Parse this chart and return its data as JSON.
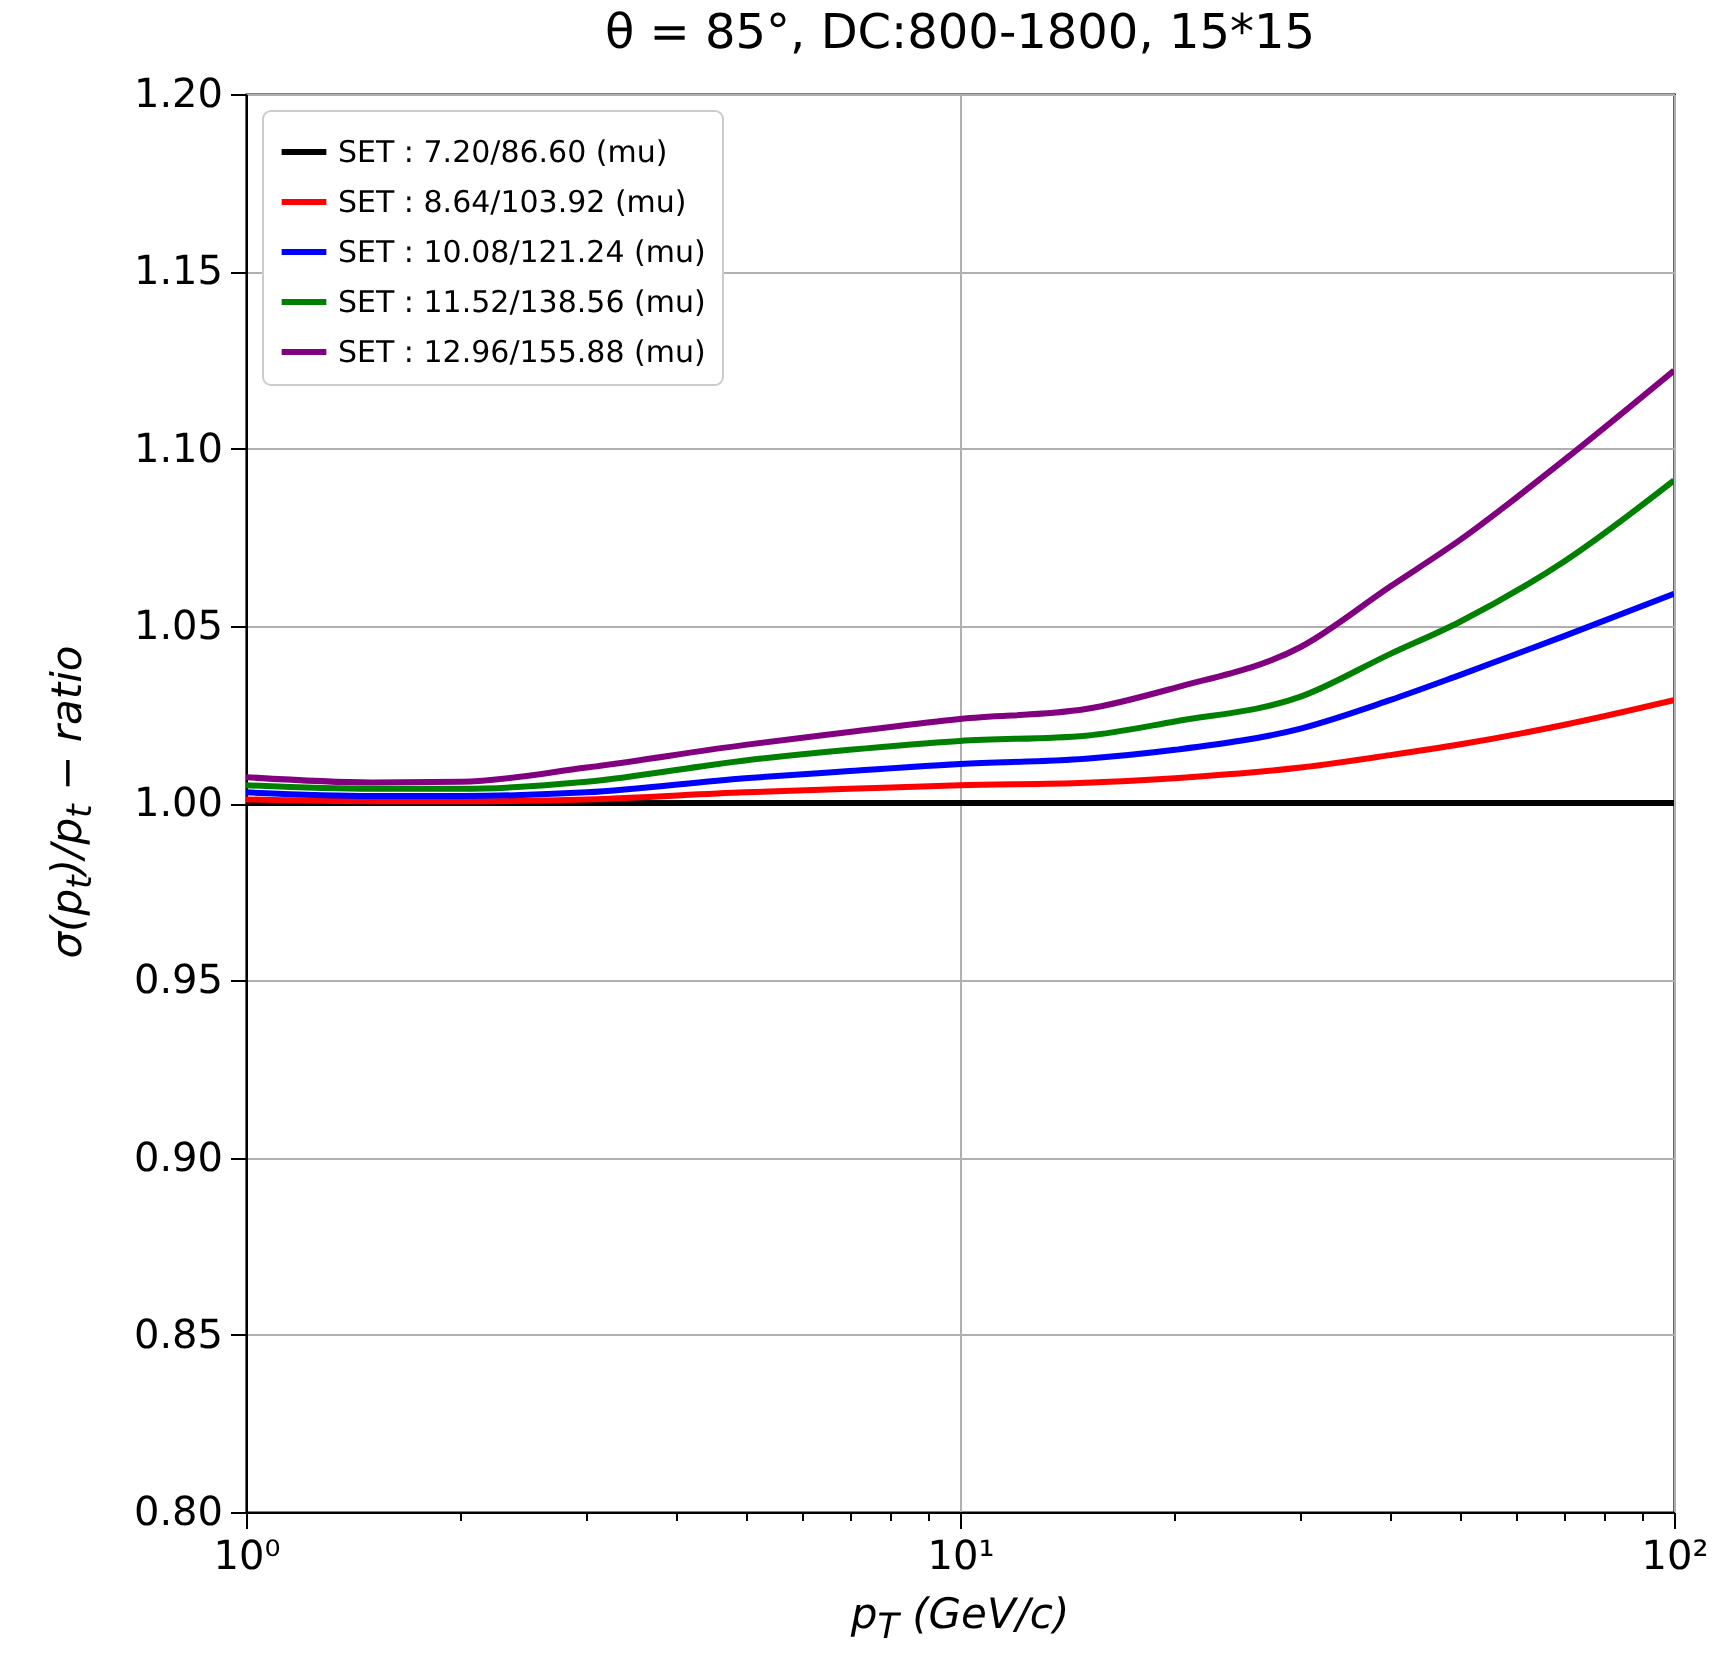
{
  "chart_data": {
    "type": "line",
    "title": "θ = 85°, DC:800-1800, 15*15",
    "xlabel": "p$_{T}$ (GeV/c)",
    "ylabel": "σ(p$_{t}$)/p$_{t}$ − ratio",
    "log": "x",
    "grid": true,
    "legend": "top left",
    "line_style": "solid",
    "marker": "none",
    "x": [
      1,
      1.5,
      2,
      3,
      5,
      7,
      10,
      15,
      20,
      30,
      40,
      50,
      70,
      100
    ],
    "xlim": [
      1,
      100
    ],
    "ylim": [
      0.8,
      1.2
    ],
    "xticks": [
      {
        "value": 1,
        "label": "10⁰"
      },
      {
        "value": 2,
        "label": null
      },
      {
        "value": 3,
        "label": null
      },
      {
        "value": 4,
        "label": null
      },
      {
        "value": 5,
        "label": null
      },
      {
        "value": 6,
        "label": null
      },
      {
        "value": 7,
        "label": null
      },
      {
        "value": 8,
        "label": null
      },
      {
        "value": 9,
        "label": null
      },
      {
        "value": 10,
        "label": "10¹"
      },
      {
        "value": 20,
        "label": null
      },
      {
        "value": 30,
        "label": null
      },
      {
        "value": 40,
        "label": null
      },
      {
        "value": 50,
        "label": null
      },
      {
        "value": 60,
        "label": null
      },
      {
        "value": 70,
        "label": null
      },
      {
        "value": 80,
        "label": null
      },
      {
        "value": 90,
        "label": null
      },
      {
        "value": 100,
        "label": "10²"
      }
    ],
    "yticks": [
      {
        "value": 0.8,
        "label": "0.80"
      },
      {
        "value": 0.85,
        "label": "0.85"
      },
      {
        "value": 0.9,
        "label": "0.90"
      },
      {
        "value": 0.95,
        "label": "0.95"
      },
      {
        "value": 1.0,
        "label": "1.00"
      },
      {
        "value": 1.05,
        "label": "1.05"
      },
      {
        "value": 1.1,
        "label": "1.10"
      },
      {
        "value": 1.15,
        "label": "1.15"
      },
      {
        "value": 1.2,
        "label": "1.20"
      }
    ],
    "series": [
      {
        "name": "SET : 7.20/86.60 (mu)",
        "color": "#000000",
        "values": [
          1,
          1,
          1,
          1,
          1,
          1,
          1,
          1,
          1,
          1,
          1,
          1,
          1,
          1
        ]
      },
      {
        "name": "SET : 8.64/103.92 (mu)",
        "color": "#ff0000",
        "values": [
          1.001,
          1.0005,
          1.0005,
          1.001,
          1.003,
          1.004,
          1.005,
          1.0057,
          1.007,
          1.01,
          1.0135,
          1.0165,
          1.022,
          1.029
        ]
      },
      {
        "name": "SET : 10.08/121.24 (mu)",
        "color": "#0000ff",
        "values": [
          1.003,
          1.002,
          1.002,
          1.003,
          1.007,
          1.009,
          1.011,
          1.0125,
          1.015,
          1.021,
          1.029,
          1.036,
          1.047,
          1.059
        ]
      },
      {
        "name": "SET : 11.52/138.56 (mu)",
        "color": "#008000",
        "values": [
          1.005,
          1.004,
          1.004,
          1.006,
          1.012,
          1.015,
          1.0175,
          1.019,
          1.023,
          1.03,
          1.042,
          1.051,
          1.068,
          1.091
        ]
      },
      {
        "name": "SET : 12.96/155.88 (mu)",
        "color": "#800080",
        "values": [
          1.0073,
          1.0058,
          1.006,
          1.01,
          1.0164,
          1.02,
          1.0237,
          1.0265,
          1.0325,
          1.044,
          1.061,
          1.074,
          1.0966,
          1.122
        ]
      }
    ]
  }
}
